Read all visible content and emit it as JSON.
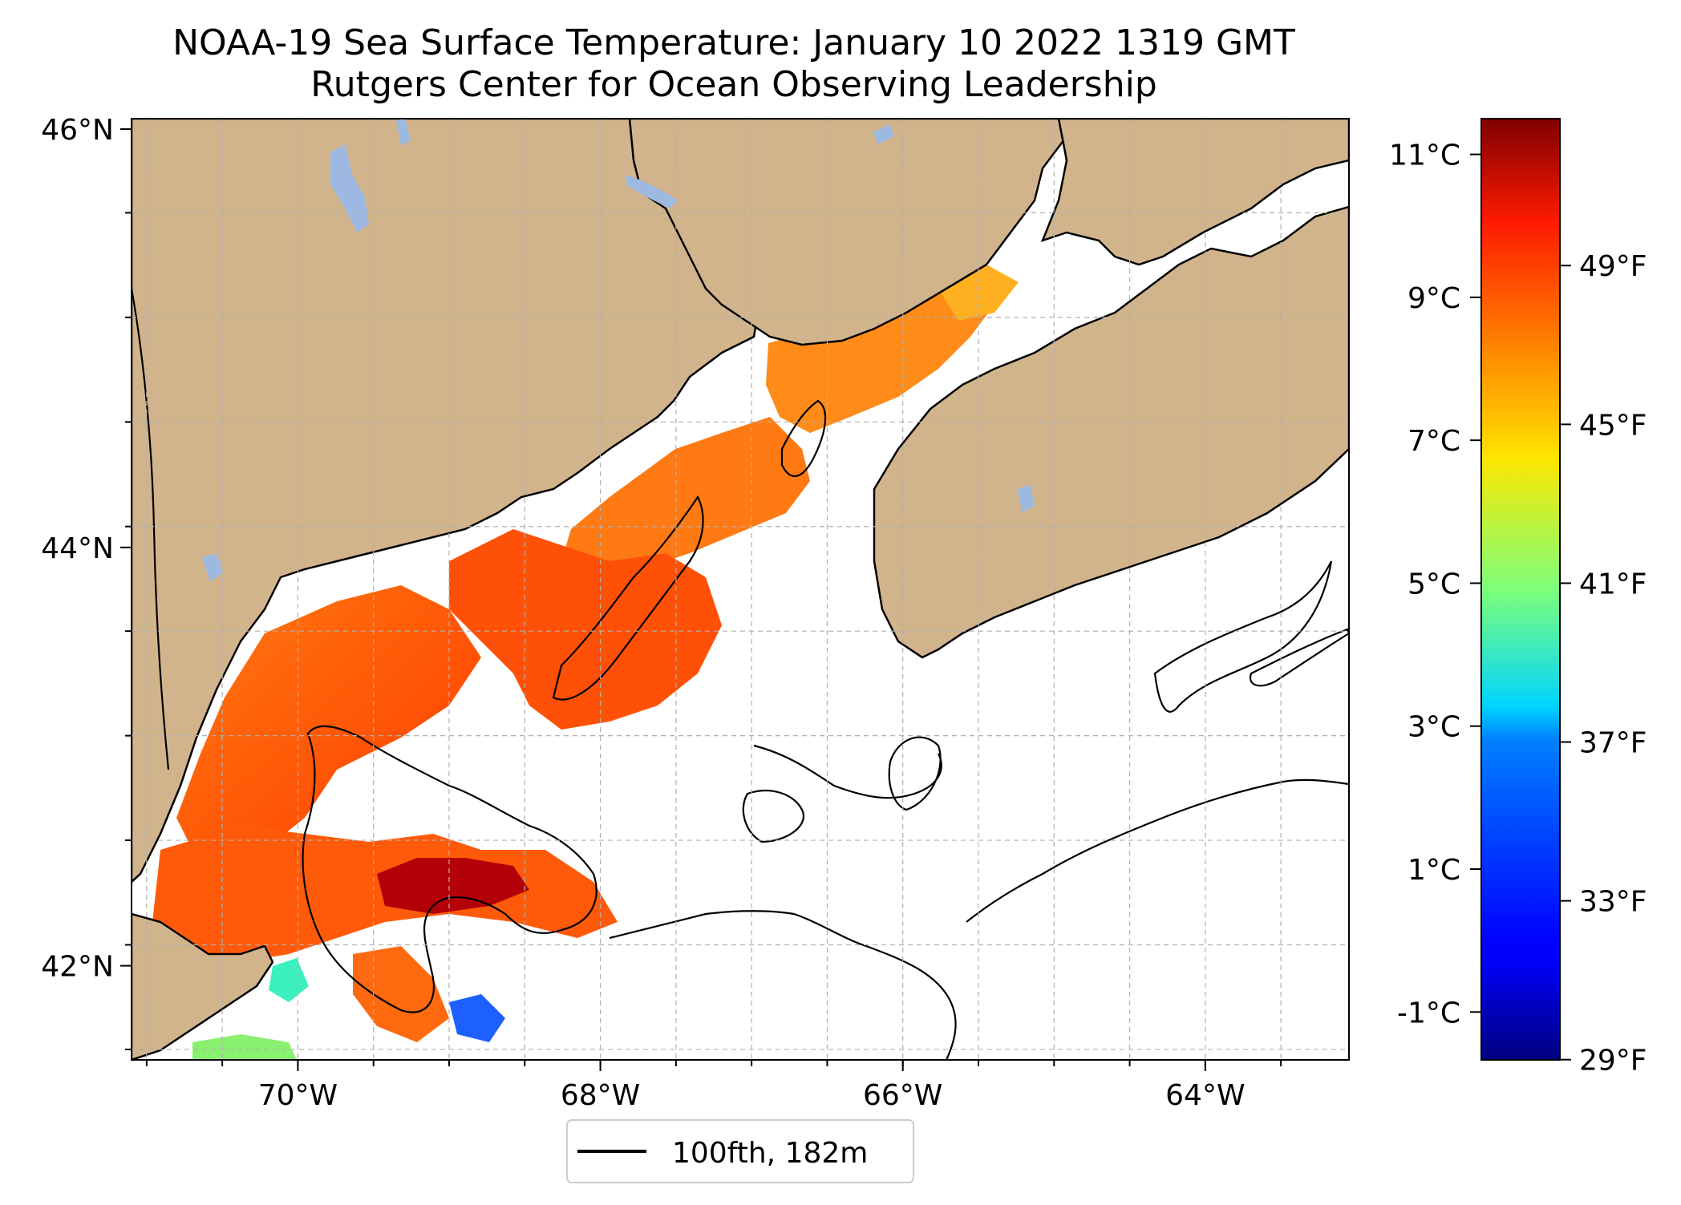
{
  "title": "NOAA-19 Sea Surface Temperature: January 10 2022 1319 GMT",
  "subtitle": "Rutgers Center for Ocean Observing Leadership",
  "map": {
    "lon_range": [
      -71.1,
      -63.05
    ],
    "lat_range": [
      41.55,
      46.05
    ],
    "lat_ticks": [
      {
        "value": 46,
        "label": "46°N"
      },
      {
        "value": 44,
        "label": "44°N"
      },
      {
        "value": 42,
        "label": "42°N"
      }
    ],
    "lon_ticks": [
      {
        "value": -70,
        "label": "70°W"
      },
      {
        "value": -68,
        "label": "68°W"
      },
      {
        "value": -66,
        "label": "66°W"
      },
      {
        "value": -64,
        "label": "64°W"
      }
    ],
    "land_color": "#d2b48c",
    "water_body_color": "#9db9e2",
    "grid": true
  },
  "colorbar": {
    "colormap": "jet",
    "range_c": [
      -1.67,
      11.5
    ],
    "celsius_ticks": [
      {
        "value": 11,
        "label": "11°C"
      },
      {
        "value": 9,
        "label": "9°C"
      },
      {
        "value": 7,
        "label": "7°C"
      },
      {
        "value": 5,
        "label": "5°C"
      },
      {
        "value": 3,
        "label": "3°C"
      },
      {
        "value": 1,
        "label": "1°C"
      },
      {
        "value": -1,
        "label": "-1°C"
      }
    ],
    "fahrenheit_ticks": [
      {
        "value": 49,
        "label": "49°F"
      },
      {
        "value": 45,
        "label": "45°F"
      },
      {
        "value": 41,
        "label": "41°F"
      },
      {
        "value": 37,
        "label": "37°F"
      },
      {
        "value": 33,
        "label": "33°F"
      },
      {
        "value": 29,
        "label": "29°F"
      }
    ]
  },
  "legend": {
    "label": "100fth, 182m",
    "line_color": "#000000"
  }
}
